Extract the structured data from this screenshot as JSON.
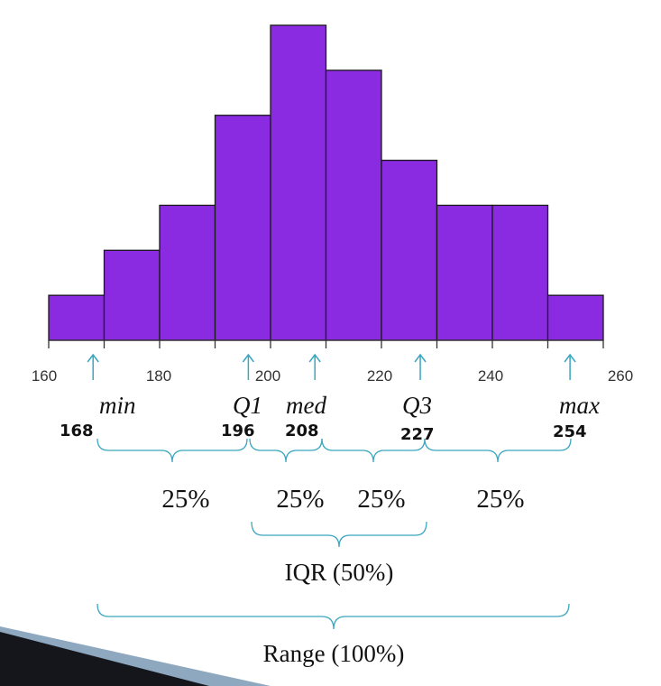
{
  "colors": {
    "bar_fill": "#8A2BE2",
    "bar_stroke": "#1a1a1a",
    "axis": "#333333",
    "annotation": "#3aa6bf",
    "corner_dark": "#15161c",
    "corner_light": "#8da8bf"
  },
  "chart_data": {
    "type": "bar",
    "bins": [
      [
        160,
        170
      ],
      [
        170,
        180
      ],
      [
        180,
        190
      ],
      [
        190,
        200
      ],
      [
        200,
        210
      ],
      [
        210,
        220
      ],
      [
        220,
        230
      ],
      [
        230,
        240
      ],
      [
        240,
        250
      ],
      [
        250,
        260
      ]
    ],
    "values": [
      1,
      2,
      3,
      5,
      7,
      6,
      4,
      3,
      3,
      1
    ],
    "xlim": [
      160,
      260
    ],
    "xticks": [
      "160",
      "180",
      "200",
      "220",
      "240",
      "260"
    ],
    "title": "",
    "xlabel": "",
    "ylabel": ""
  },
  "stats": [
    {
      "name": "min",
      "value": "168",
      "x": 168
    },
    {
      "name": "Q1",
      "value": "196",
      "x": 196
    },
    {
      "name": "med",
      "value": "208",
      "x": 208
    },
    {
      "name": "Q3",
      "value": "227",
      "x": 227
    },
    {
      "name": "max",
      "value": "254",
      "x": 254
    }
  ],
  "quartile_percents": [
    "25%",
    "25%",
    "25%",
    "25%"
  ],
  "iqr_label": "IQR (50%)",
  "range_label": "Range (100%)"
}
